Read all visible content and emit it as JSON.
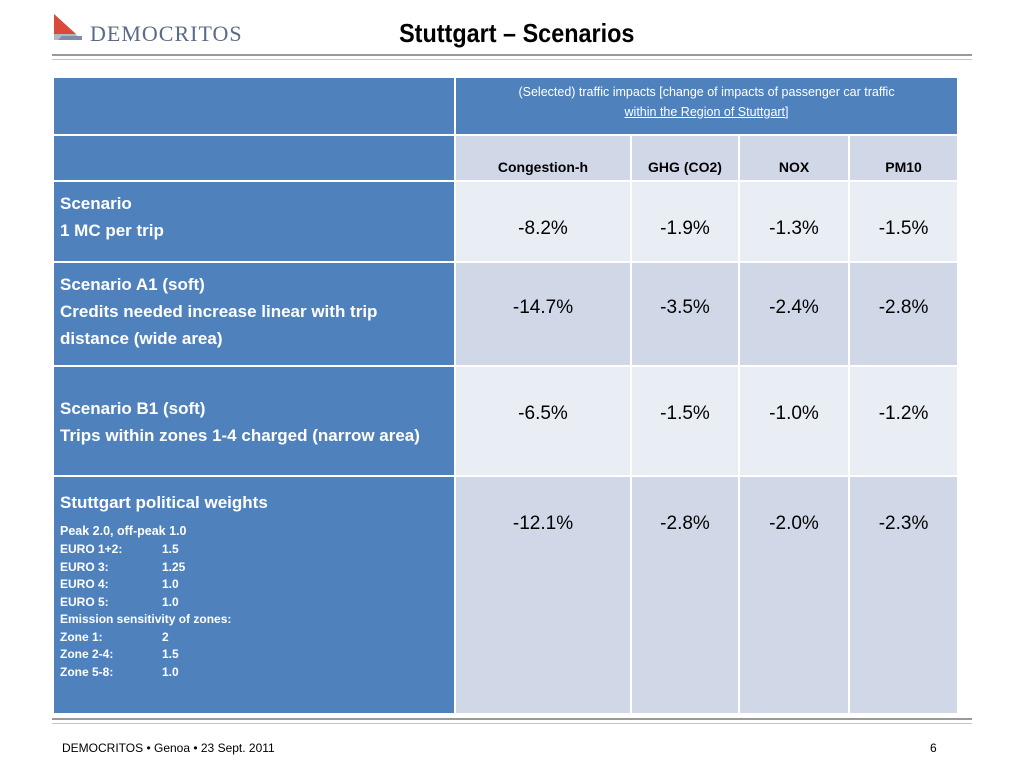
{
  "logo": {
    "text": "DEMOCRITOS"
  },
  "header": {
    "title": "Stuttgart – Scenarios"
  },
  "table": {
    "impacts_title_line1": "(Selected) traffic impacts [change of impacts of passenger car traffic",
    "impacts_title_line2": "within the Region of Stuttgart",
    "impacts_title_close": "]",
    "columns": [
      "Congestion-h",
      "GHG (CO2)",
      "NOX",
      "PM10"
    ],
    "rows": [
      {
        "label_lines": [
          "Scenario",
          "1 MC per trip"
        ],
        "values": [
          "-8.2%",
          "-1.9%",
          "-1.3%",
          "-1.5%"
        ]
      },
      {
        "label_lines": [
          "Scenario A1 (soft)",
          "Credits needed increase linear with trip distance (wide area)"
        ],
        "values": [
          "-14.7%",
          "-3.5%",
          "-2.4%",
          "-2.8%"
        ]
      },
      {
        "label_lines": [
          "Scenario B1 (soft)",
          "Trips within zones 1-4 charged (narrow area)"
        ],
        "values": [
          "-6.5%",
          "-1.5%",
          "-1.0%",
          "-1.2%"
        ]
      },
      {
        "label_lines": [
          "Stuttgart political weights"
        ],
        "values": [
          "-12.1%",
          "-2.8%",
          "-2.0%",
          "-2.3%"
        ]
      }
    ],
    "weights": {
      "peak": "Peak 2.0, off-peak 1.0",
      "items": [
        {
          "k": "EURO 1+2:",
          "v": "1.5"
        },
        {
          "k": "EURO 3:",
          "v": "1.25"
        },
        {
          "k": "EURO 4:",
          "v": "1.0"
        },
        {
          "k": "EURO 5:",
          "v": "1.0"
        }
      ],
      "sensitivity": "Emission sensitivity of zones:",
      "zones": [
        {
          "k": "Zone 1:",
          "v": "2"
        },
        {
          "k": "Zone 2-4:",
          "v": "1.5"
        },
        {
          "k": "Zone 5-8:",
          "v": "1.0"
        }
      ]
    }
  },
  "footer": {
    "left": "DEMOCRITOS • Genoa • 23 Sept. 2011",
    "page": "6"
  },
  "colors": {
    "header_blue": "#4f81bd",
    "cell_light": "#d0d8e8",
    "cell_lighter": "#e9edf4"
  }
}
